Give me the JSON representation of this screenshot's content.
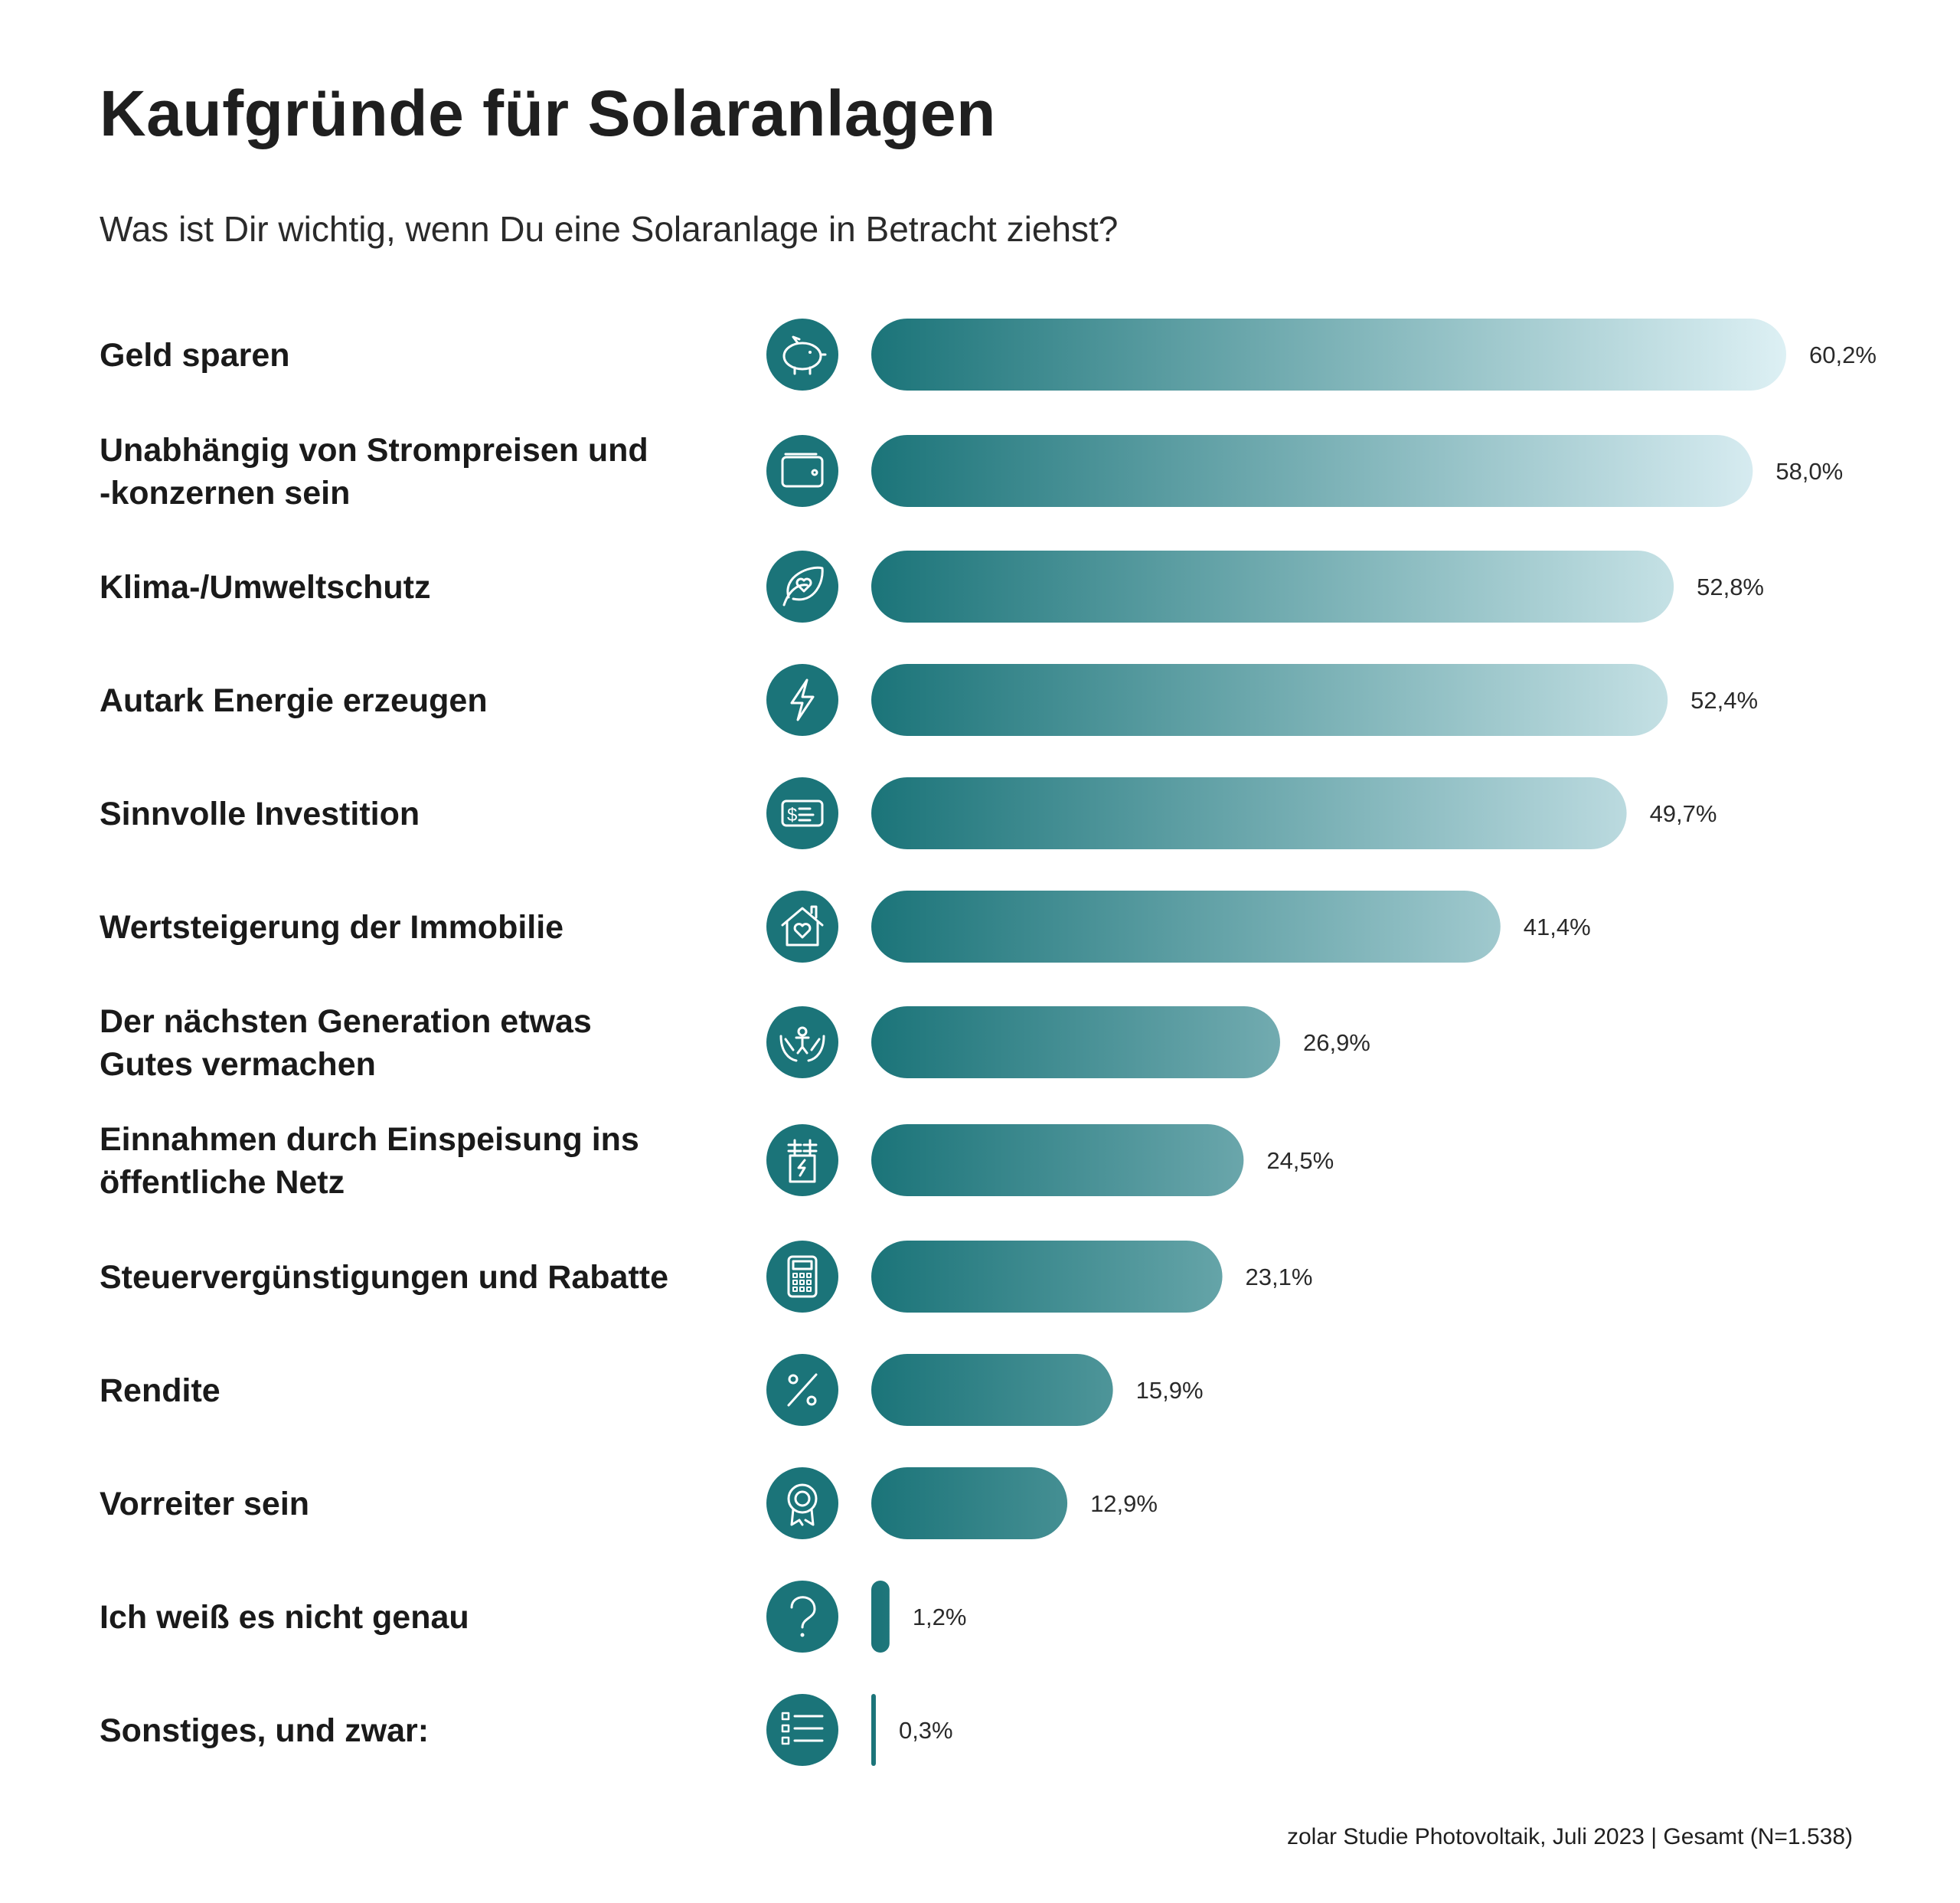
{
  "title": "Kaufgründe für Solaranlagen",
  "subtitle": "Was ist Dir wichtig, wenn Du eine Solaranlage in Betracht ziehst?",
  "source": "zolar Studie Photovoltaik, Juli 2023 | Gesamt (N=1.538)",
  "colors": {
    "bar_dark": "#1b7479",
    "bar_light": "#ddf0f4",
    "icon_bg": "#1b7479",
    "icon_stroke": "#ffffff"
  },
  "chart_data": {
    "type": "bar",
    "orientation": "horizontal",
    "title": "Kaufgründe für Solaranlagen",
    "subtitle": "Was ist Dir wichtig, wenn Du eine Solaranlage in Betracht ziehst?",
    "unit": "%",
    "xlim": [
      0,
      60.2
    ],
    "categories": [
      [
        "Geld sparen"
      ],
      [
        "Unabhängig von Strompreisen und",
        "-konzernen sein"
      ],
      [
        "Klima-/Umweltschutz"
      ],
      [
        "Autark Energie erzeugen"
      ],
      [
        "Sinnvolle Investition"
      ],
      [
        "Wertsteigerung der Immobilie"
      ],
      [
        "Der nächsten Generation etwas",
        "Gutes vermachen"
      ],
      [
        "Einnahmen durch Einspeisung ins",
        "öffentliche Netz"
      ],
      [
        "Steuervergünstigungen und Rabatte"
      ],
      [
        "Rendite"
      ],
      [
        "Vorreiter sein"
      ],
      [
        "Ich weiß es nicht genau"
      ],
      [
        "Sonstiges, und zwar:"
      ]
    ],
    "values": [
      60.2,
      58.0,
      52.8,
      52.4,
      49.7,
      41.4,
      26.9,
      24.5,
      23.1,
      15.9,
      12.9,
      1.2,
      0.3
    ],
    "value_labels": [
      "60,2%",
      "58,0%",
      "52,8%",
      "52,4%",
      "49,7%",
      "41,4%",
      "26,9%",
      "24,5%",
      "23,1%",
      "15,9%",
      "12,9%",
      "1,2%",
      "0,3%"
    ],
    "icons": [
      "piggy-bank-icon",
      "wallet-icon",
      "leaf-heart-icon",
      "lightning-icon",
      "dollar-card-icon",
      "house-heart-icon",
      "hands-person-icon",
      "power-pylon-icon",
      "calculator-icon",
      "percent-icon",
      "award-badge-icon",
      "question-icon",
      "list-icon"
    ]
  }
}
